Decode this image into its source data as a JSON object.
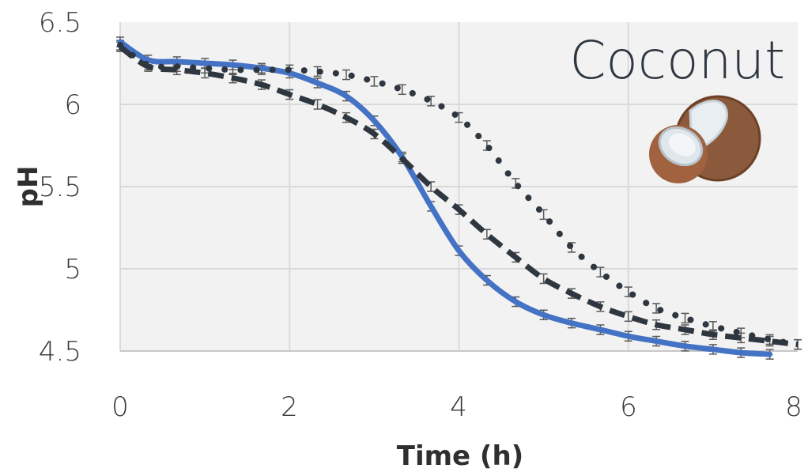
{
  "chart_data": {
    "type": "line",
    "title": "",
    "annotation": "Coconut",
    "xlabel": "Time (h)",
    "ylabel": "pH",
    "xlim": [
      0,
      8
    ],
    "ylim": [
      4.5,
      6.5
    ],
    "x_ticks": [
      "0",
      "2",
      "4",
      "6",
      "8"
    ],
    "y_ticks": [
      "4.5",
      "5",
      "5.5",
      "6",
      "6.5"
    ],
    "grid": true,
    "legend": "none",
    "colors": {
      "plot_bg": "#f2f2f2",
      "grid": "#d9d9d9",
      "solid": "#4472c4",
      "dashed": "#2e3740",
      "dotted": "#2e3740",
      "error_bar": "#595959"
    },
    "icon": "coconut-icon",
    "series": [
      {
        "style": "solid",
        "x": [
          0,
          0.33,
          0.67,
          1.0,
          1.33,
          1.67,
          2.0,
          2.33,
          2.67,
          3.0,
          3.33,
          3.67,
          4.0,
          4.33,
          4.67,
          5.0,
          5.33,
          5.67,
          6.0,
          6.33,
          6.67,
          7.0,
          7.33,
          7.67
        ],
        "y": [
          6.38,
          6.27,
          6.26,
          6.25,
          6.24,
          6.22,
          6.19,
          6.13,
          6.05,
          5.9,
          5.68,
          5.38,
          5.11,
          4.93,
          4.8,
          4.72,
          4.67,
          4.63,
          4.59,
          4.56,
          4.53,
          4.51,
          4.49,
          4.48
        ]
      },
      {
        "style": "dashed",
        "x": [
          0,
          0.33,
          0.67,
          1.0,
          1.33,
          1.67,
          2.0,
          2.33,
          2.67,
          3.0,
          3.33,
          3.67,
          4.0,
          4.33,
          4.67,
          5.0,
          5.33,
          5.67,
          6.0,
          6.33,
          6.67,
          7.0,
          7.33,
          7.67,
          8.0
        ],
        "y": [
          6.35,
          6.23,
          6.21,
          6.19,
          6.16,
          6.12,
          6.06,
          6.0,
          5.92,
          5.82,
          5.67,
          5.5,
          5.36,
          5.21,
          5.07,
          4.94,
          4.85,
          4.77,
          4.71,
          4.66,
          4.63,
          4.6,
          4.58,
          4.56,
          4.54
        ]
      },
      {
        "style": "dotted",
        "x": [
          0,
          0.33,
          0.67,
          1.0,
          1.33,
          1.67,
          2.0,
          2.33,
          2.67,
          3.0,
          3.33,
          3.67,
          4.0,
          4.33,
          4.67,
          5.0,
          5.33,
          5.67,
          6.0,
          6.33,
          6.67,
          7.0,
          7.33,
          7.67,
          8.0
        ],
        "y": [
          6.36,
          6.24,
          6.23,
          6.22,
          6.21,
          6.21,
          6.21,
          6.2,
          6.18,
          6.14,
          6.09,
          6.02,
          5.92,
          5.75,
          5.52,
          5.33,
          5.13,
          4.98,
          4.86,
          4.76,
          4.7,
          4.65,
          4.61,
          4.57,
          4.54
        ]
      }
    ]
  }
}
